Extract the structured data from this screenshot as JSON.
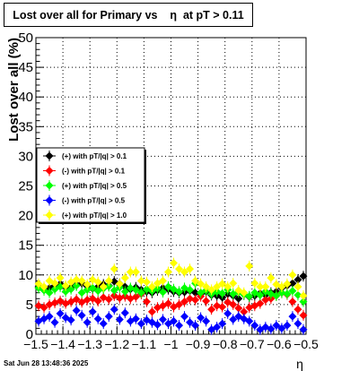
{
  "chart_data": {
    "type": "scatter",
    "title": "Lost over all for Primary vs    η  at pT > 0.11",
    "xlabel": "η",
    "ylabel": "Lost over all (%)",
    "xlim": [
      -1.5,
      -0.5
    ],
    "ylim": [
      0,
      50
    ],
    "x_major_ticks": [
      -1.5,
      -1.4,
      -1.3,
      -1.2,
      -1.1,
      -1.0,
      -0.9,
      -0.8,
      -0.7,
      -0.6,
      -0.5
    ],
    "x_tick_labels": [
      "−1.5",
      "−1.4",
      "−1.3",
      "−1.2",
      "−1.1",
      "−1",
      "−0.9",
      "−0.8",
      "−0.7",
      "−0.6",
      "−0.5"
    ],
    "y_major_ticks": [
      0,
      5,
      10,
      15,
      20,
      25,
      30,
      35,
      40,
      45,
      50
    ],
    "y_tick_labels": [
      "0",
      "5",
      "10",
      "15",
      "20",
      "25",
      "30",
      "35",
      "40",
      "45",
      "50"
    ],
    "grid": true,
    "legend_position": "left, middle",
    "series": [
      {
        "name": "(+) with pT/|q| > 0.1",
        "color": "#000000",
        "x_start": -1.49,
        "x_step": 0.02,
        "values": [
          8.0,
          7.6,
          7.8,
          8.2,
          8.5,
          8.0,
          7.9,
          8.3,
          8.6,
          8.1,
          7.7,
          8.0,
          8.4,
          8.2,
          8.9,
          8.5,
          8.0,
          7.6,
          7.9,
          7.5,
          7.2,
          7.0,
          7.4,
          7.8,
          7.6,
          7.2,
          7.0,
          7.1,
          7.3,
          7.0,
          6.8,
          7.2,
          6.6,
          6.5,
          6.2,
          6.8,
          6.5,
          6.0,
          6.7,
          6.3,
          6.5,
          6.9,
          6.6,
          7.0,
          7.2,
          7.8,
          8.2,
          8.6,
          9.2,
          9.8
        ]
      },
      {
        "name": "(-) with pT/|q| > 0.1",
        "color": "#ff0000",
        "x_start": -1.49,
        "x_step": 0.02,
        "values": [
          4.8,
          4.5,
          5.0,
          5.3,
          5.6,
          5.2,
          5.5,
          5.9,
          5.4,
          5.8,
          6.0,
          5.6,
          6.2,
          5.9,
          6.5,
          6.1,
          6.4,
          6.0,
          6.3,
          6.8,
          5.5,
          3.8,
          4.5,
          4.8,
          5.2,
          4.6,
          5.0,
          5.5,
          6.0,
          5.8,
          6.4,
          5.6,
          4.2,
          4.8,
          4.6,
          5.4,
          5.0,
          4.4,
          3.8,
          4.5,
          4.8,
          5.2,
          5.8,
          6.0,
          6.5,
          7.0,
          6.7,
          5.5,
          4.2,
          3.2
        ]
      },
      {
        "name": "(+) with pT/|q| > 0.5",
        "color": "#00ff00",
        "x_start": -1.49,
        "x_step": 0.02,
        "values": [
          7.8,
          7.4,
          7.0,
          7.6,
          8.0,
          7.2,
          7.6,
          8.2,
          7.0,
          7.5,
          7.8,
          7.3,
          7.7,
          8.1,
          7.4,
          7.9,
          7.2,
          7.8,
          7.5,
          7.0,
          7.6,
          7.3,
          7.7,
          7.1,
          8.0,
          7.6,
          7.2,
          7.8,
          7.5,
          8.6,
          7.0,
          7.4,
          6.8,
          7.2,
          6.9,
          7.5,
          6.8,
          7.1,
          6.7,
          6.4,
          7.0,
          6.6,
          7.2,
          6.8,
          6.5,
          7.0,
          6.8,
          7.3,
          6.6,
          5.5
        ]
      },
      {
        "name": "(-) with pT/|q| > 0.5",
        "color": "#0000ff",
        "x_start": -1.49,
        "x_step": 0.02,
        "values": [
          2.2,
          2.6,
          3.0,
          2.0,
          3.5,
          2.8,
          2.4,
          4.0,
          3.2,
          2.0,
          3.8,
          2.6,
          1.8,
          3.0,
          4.2,
          2.5,
          3.6,
          2.2,
          2.6,
          1.8,
          2.4,
          2.0,
          1.6,
          2.5,
          1.8,
          2.2,
          1.5,
          3.0,
          2.0,
          1.5,
          2.8,
          2.2,
          0.8,
          1.2,
          1.8,
          3.5,
          2.5,
          3.0,
          2.6,
          2.2,
          1.5,
          0.8,
          1.2,
          0.9,
          1.5,
          1.0,
          1.5,
          3.0,
          1.8,
          0.8
        ]
      },
      {
        "name": "(+) with pT/|q| > 1.0",
        "color": "#ffff00",
        "x_start": -1.49,
        "x_step": 0.02,
        "values": [
          8.5,
          8.0,
          9.0,
          8.6,
          9.5,
          8.2,
          8.8,
          9.2,
          9.0,
          8.4,
          9.2,
          8.8,
          8.0,
          9.0,
          11.0,
          8.5,
          9.5,
          10.5,
          10.5,
          9.0,
          8.8,
          8.0,
          8.6,
          9.0,
          10.5,
          12.0,
          11.0,
          10.5,
          11.0,
          9.0,
          8.5,
          8.0,
          7.5,
          8.0,
          8.5,
          8.0,
          8.6,
          7.4,
          7.0,
          11.5,
          8.6,
          8.0,
          8.0,
          9.5,
          8.4,
          8.0,
          8.5,
          10.0,
          8.0,
          6.5
        ]
      }
    ],
    "timestamp": "Sat Jun 28 13:48:36 2025"
  }
}
